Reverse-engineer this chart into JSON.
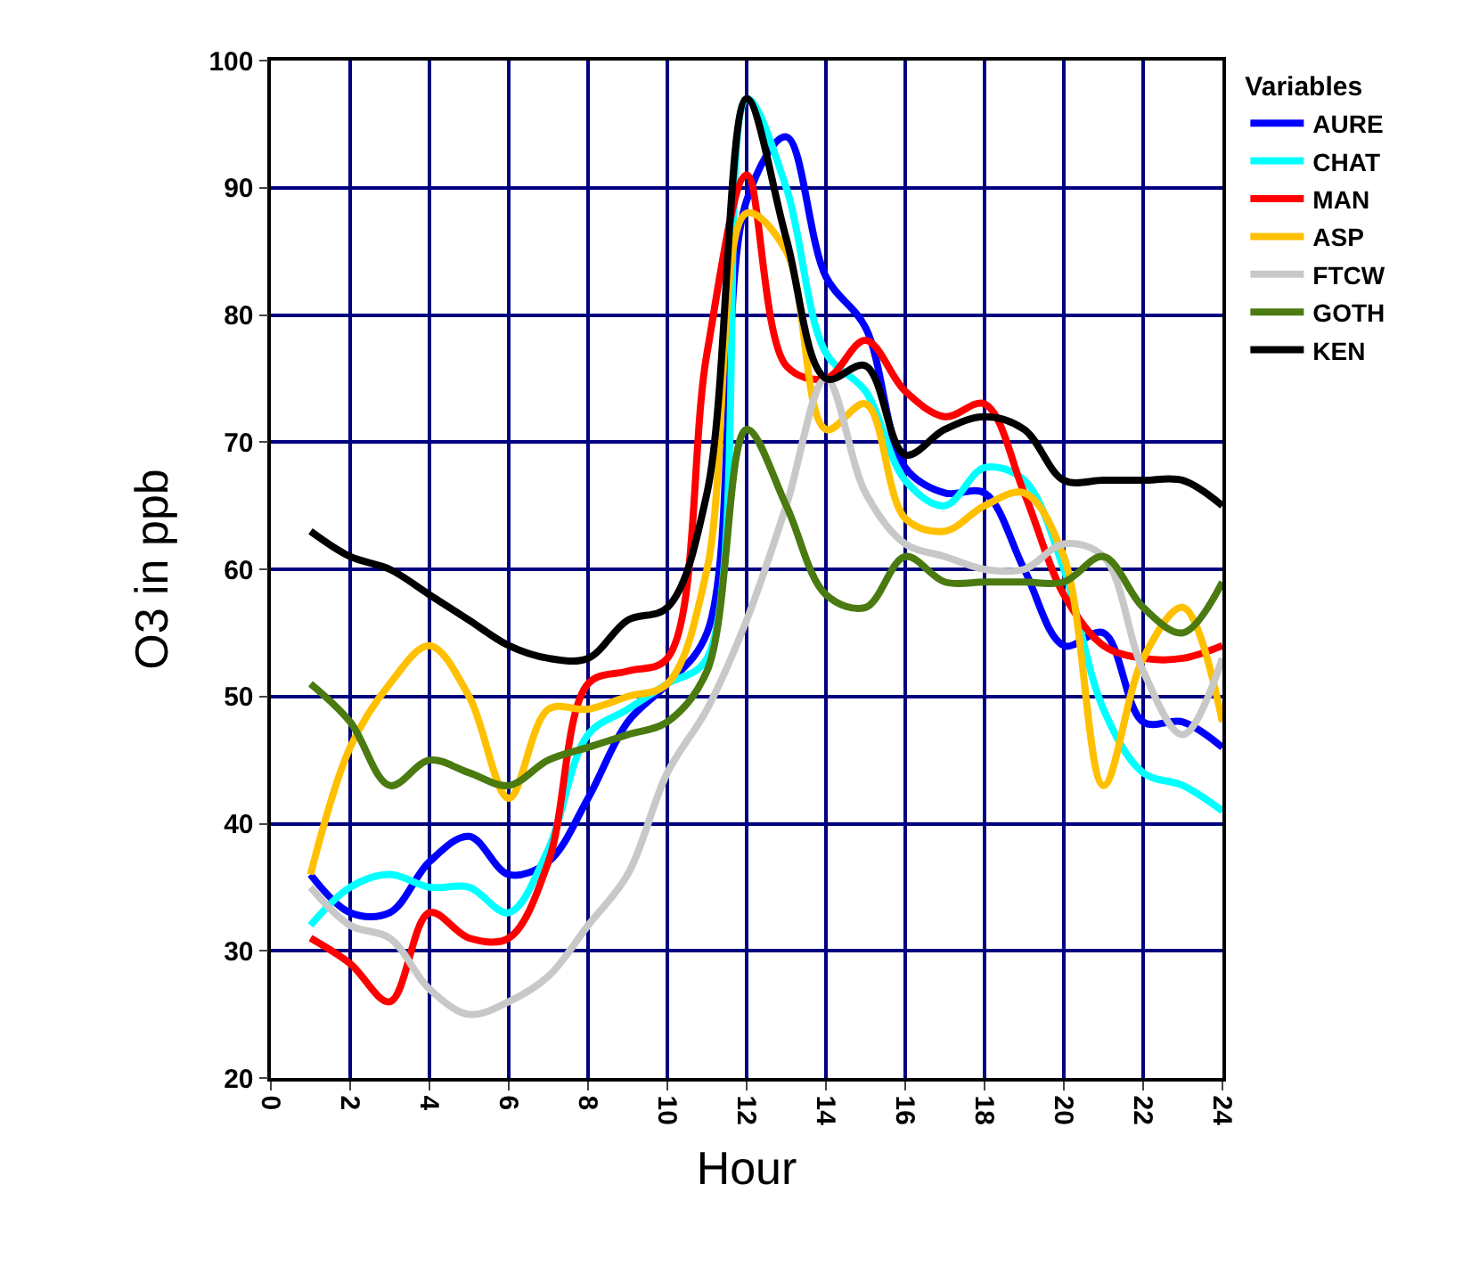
{
  "chart_data": {
    "type": "line",
    "xlabel": "Hour",
    "ylabel": "O3 in ppb",
    "legend_title": "Variables",
    "x": [
      1,
      2,
      3,
      4,
      5,
      6,
      7,
      8,
      9,
      10,
      11,
      12,
      13,
      14,
      15,
      16,
      17,
      18,
      19,
      20,
      21,
      22,
      23,
      24
    ],
    "series": [
      {
        "name": "AURE",
        "color": "#0000ff",
        "values": [
          36,
          33,
          33,
          37,
          39,
          36,
          37,
          42,
          48,
          51,
          55,
          89,
          94,
          83,
          79,
          68,
          66,
          66,
          60,
          54,
          55,
          48,
          48,
          46
        ]
      },
      {
        "name": "CHAT",
        "color": "#00ffff",
        "values": [
          32,
          35,
          36,
          35,
          35,
          33,
          38,
          47,
          49,
          51,
          53,
          97,
          90,
          77,
          74,
          67,
          65,
          68,
          67,
          60,
          49,
          44,
          43,
          41
        ]
      },
      {
        "name": "MAN",
        "color": "#ff0000",
        "values": [
          31,
          29,
          26,
          33,
          31,
          31,
          37,
          51,
          52,
          53,
          77,
          91,
          76,
          75,
          78,
          74,
          72,
          73,
          66,
          58,
          54,
          53,
          53,
          54
        ]
      },
      {
        "name": "ASP",
        "color": "#ffc000",
        "values": [
          36,
          46,
          51,
          54,
          50,
          42,
          49,
          49,
          50,
          51,
          60,
          88,
          85,
          71,
          73,
          64,
          63,
          65,
          66,
          61,
          43,
          53,
          57,
          48
        ]
      },
      {
        "name": "FTCW",
        "color": "#c8c8c8",
        "values": [
          35,
          32,
          31,
          27,
          25,
          26,
          28,
          32,
          36,
          44,
          49,
          56,
          65,
          75,
          66,
          62,
          61,
          60,
          60,
          62,
          61,
          52,
          47,
          53
        ]
      },
      {
        "name": "GOTH",
        "color": "#4a7a10",
        "values": [
          51,
          48,
          43,
          45,
          44,
          43,
          45,
          46,
          47,
          48,
          52,
          71,
          65,
          58,
          57,
          61,
          59,
          59,
          59,
          59,
          61,
          57,
          55,
          59
        ]
      },
      {
        "name": "KEN",
        "color": "#000000",
        "values": [
          63,
          61,
          60,
          58,
          56,
          54,
          53,
          53,
          56,
          57,
          66,
          97,
          86,
          75,
          76,
          69,
          71,
          72,
          71,
          67,
          67,
          67,
          67,
          65
        ]
      }
    ],
    "xlim": [
      0,
      24
    ],
    "xticks": [
      0,
      2,
      4,
      6,
      8,
      10,
      12,
      14,
      16,
      18,
      20,
      22,
      24
    ],
    "ylim": [
      20,
      100
    ],
    "yticks": [
      20,
      30,
      40,
      50,
      60,
      70,
      80,
      90,
      100
    ],
    "grid": true,
    "legend": "top right",
    "marker": "none",
    "line_style": "solid"
  }
}
